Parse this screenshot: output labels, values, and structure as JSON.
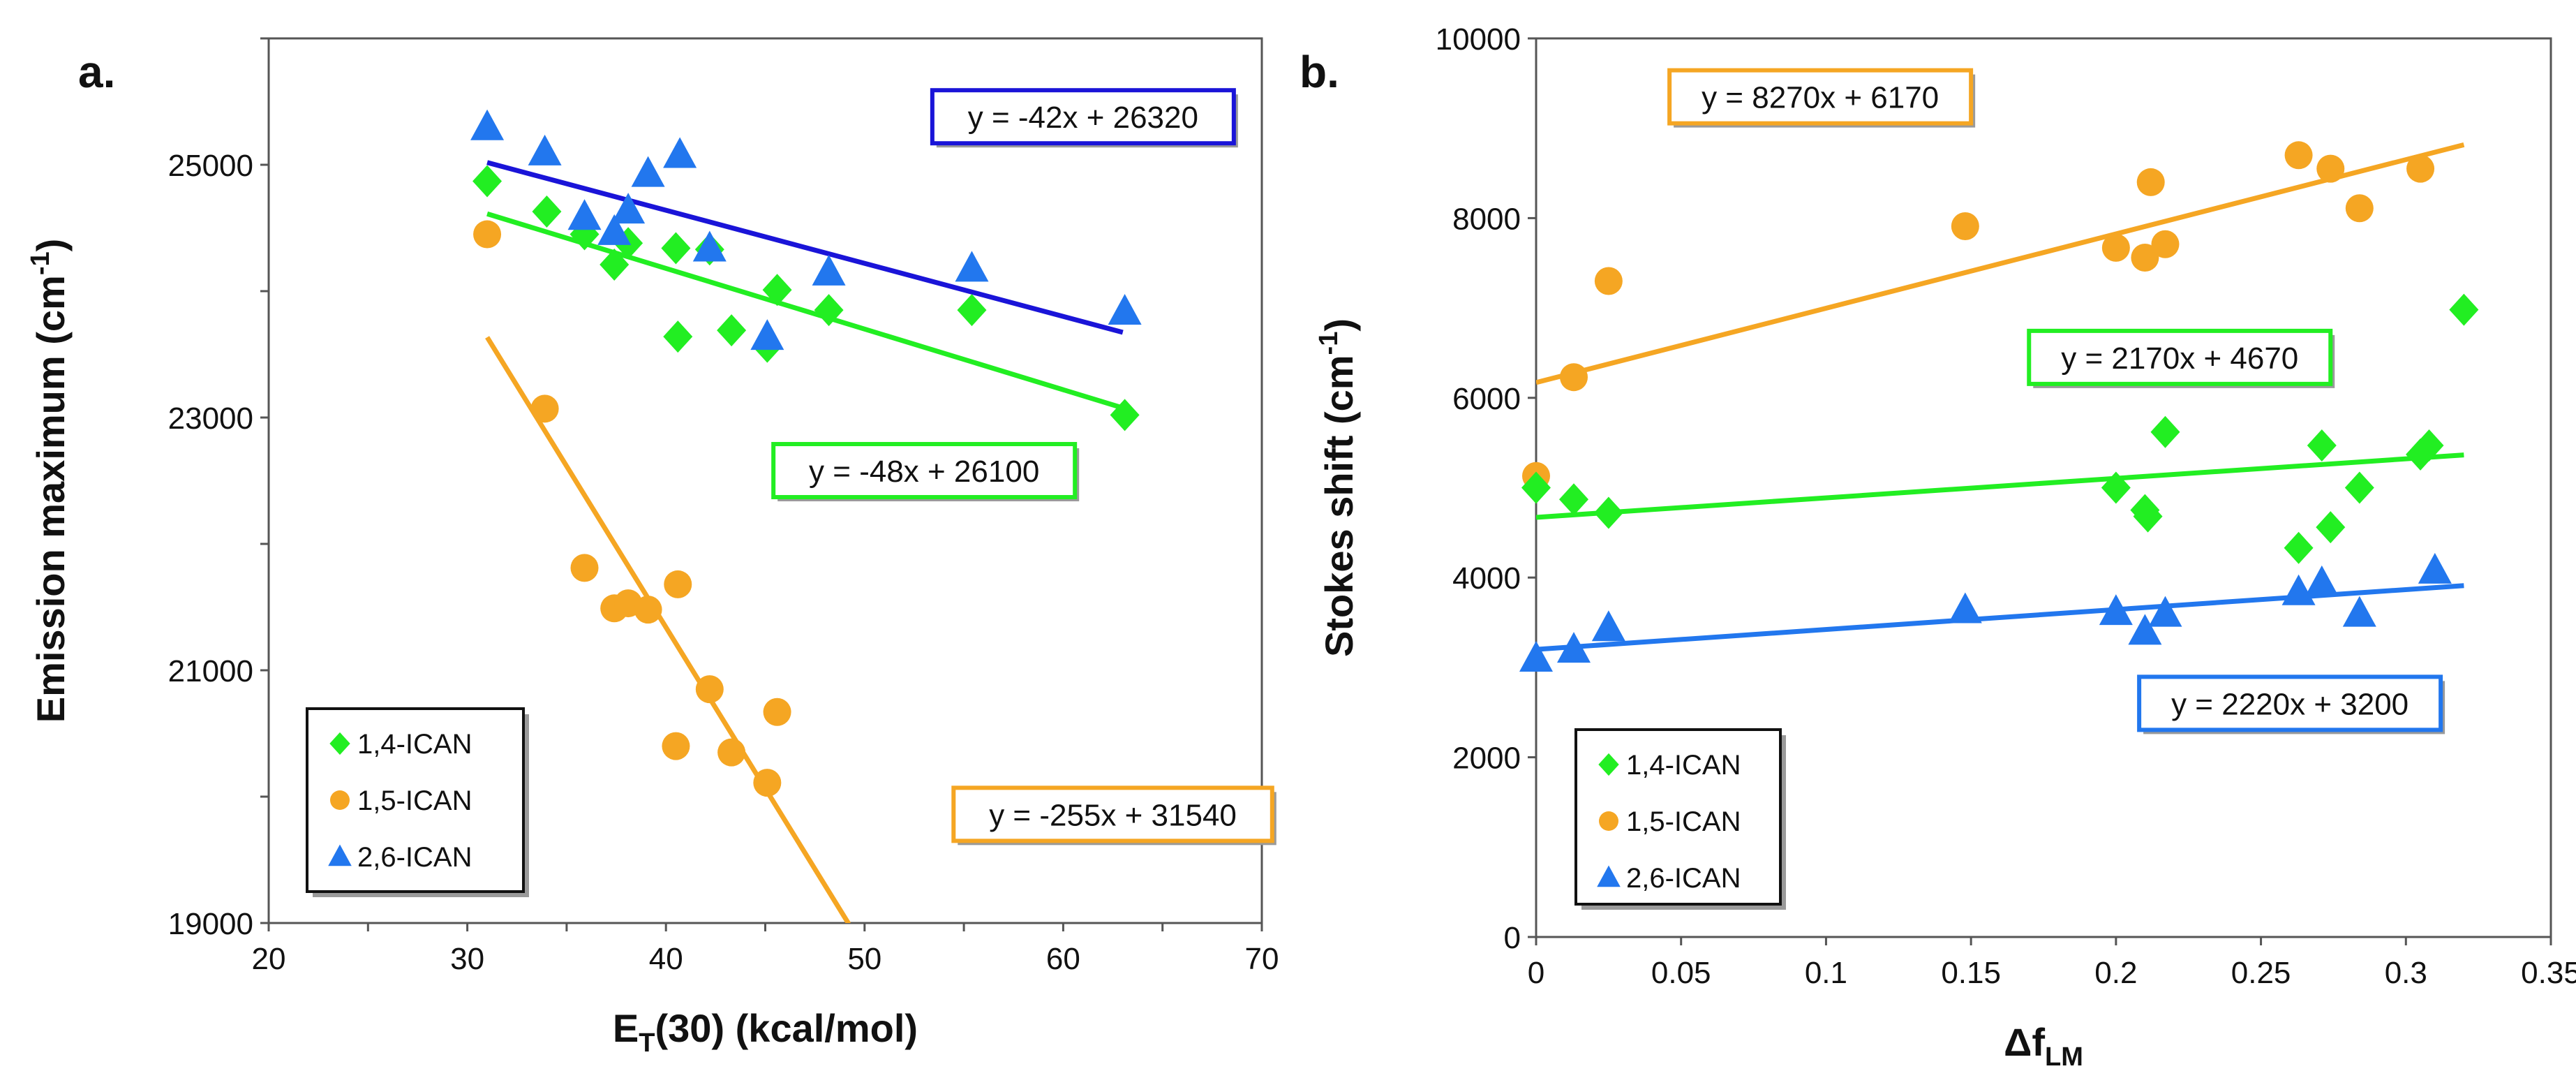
{
  "colors": {
    "green": "#22ee22",
    "orange": "#f5a623",
    "blue": "#2277ee",
    "darkblue": "#1a14d8"
  },
  "chart_data": [
    {
      "panel": "a.",
      "type": "scatter",
      "xlabel_main": "E",
      "xlabel_sub": "T",
      "xlabel_rest": "(30) (kcal/mol)",
      "ylabel_main": "Emission maximum (cm",
      "ylabel_sup": "-1",
      "ylabel_end": ")",
      "xlim": [
        20,
        70
      ],
      "ylim": [
        19000,
        26000
      ],
      "xticks": [
        20,
        30,
        40,
        50,
        60,
        70
      ],
      "yticks": [
        19000,
        21000,
        23000,
        25000
      ],
      "ytick_minor": [
        20000,
        22000,
        24000,
        26000
      ],
      "xtick_labels": [
        "20",
        "30",
        "40",
        "50",
        "60",
        "70"
      ],
      "ytick_labels": [
        "19000",
        "21000",
        "23000",
        "25000"
      ],
      "legend": [
        "1,4-ICAN",
        "1,5-ICAN",
        "2,6-ICAN"
      ],
      "series": [
        {
          "name": "1,4-ICAN",
          "marker": "diamond",
          "color": "green",
          "x": [
            31.0,
            34.0,
            35.9,
            37.4,
            38.1,
            40.5,
            40.6,
            42.2,
            43.3,
            45.1,
            45.6,
            48.2,
            55.4,
            63.1
          ],
          "y": [
            24870,
            24630,
            24450,
            24210,
            24380,
            24340,
            23640,
            24330,
            23690,
            23560,
            24010,
            23850,
            23850,
            23020
          ]
        },
        {
          "name": "1,5-ICAN",
          "marker": "circle",
          "color": "orange",
          "x": [
            31.0,
            33.9,
            35.9,
            37.4,
            38.1,
            39.1,
            40.6,
            40.5,
            42.2,
            43.3,
            45.1,
            45.6
          ],
          "y": [
            24450,
            23070,
            21810,
            21490,
            21530,
            21480,
            21680,
            20400,
            20850,
            20350,
            20110,
            20670
          ]
        },
        {
          "name": "2,6-ICAN",
          "marker": "triangle",
          "color": "blue",
          "x": [
            31.0,
            33.9,
            35.9,
            37.4,
            38.1,
            39.1,
            40.7,
            42.2,
            45.1,
            48.2,
            55.4,
            63.1
          ],
          "y": [
            25300,
            25100,
            24590,
            24470,
            24640,
            24930,
            25080,
            24340,
            23640,
            24150,
            24180,
            23840
          ]
        }
      ],
      "fits": [
        {
          "series": "2,6-ICAN",
          "color": "darkblue",
          "slope": -42,
          "intercept": 26320,
          "x_range": [
            31,
            63
          ],
          "label": "y = -42x + 26320",
          "label_pos": [
            61,
            25380
          ],
          "box_color": "darkblue"
        },
        {
          "series": "1,4-ICAN",
          "color": "green",
          "slope": -48,
          "intercept": 26100,
          "x_range": [
            31,
            63
          ],
          "label": "y = -48x + 26100",
          "label_pos": [
            53,
            22580
          ],
          "box_color": "green"
        },
        {
          "series": "1,5-ICAN",
          "color": "orange",
          "slope": -255,
          "intercept": 31540,
          "x_range": [
            31,
            49.2
          ],
          "label": "y = -255x + 31540",
          "label_pos": [
            62.5,
            19860
          ],
          "box_color": "orange"
        }
      ],
      "legend_position": "bottom-left"
    },
    {
      "panel": "b.",
      "type": "scatter",
      "xlabel_main": "Δf",
      "xlabel_sub": "LM",
      "ylabel_main": "Stokes shift (cm",
      "ylabel_sup": "-1",
      "ylabel_end": ")",
      "xlim": [
        0,
        0.35
      ],
      "ylim": [
        0,
        10000
      ],
      "xticks": [
        0,
        0.05,
        0.1,
        0.15,
        0.2,
        0.25,
        0.3,
        0.35
      ],
      "yticks": [
        0,
        2000,
        4000,
        6000,
        8000,
        10000
      ],
      "xtick_labels": [
        "0",
        "0.05",
        "0.1",
        "0.15",
        "0.2",
        "0.25",
        "0.3",
        "0.35"
      ],
      "ytick_labels": [
        "0",
        "2000",
        "4000",
        "6000",
        "8000",
        "10000"
      ],
      "legend": [
        "1,4-ICAN",
        "1,5-ICAN",
        "2,6-ICAN"
      ],
      "series": [
        {
          "name": "1,4-ICAN",
          "marker": "diamond",
          "color": "green",
          "x": [
            0.0,
            0.013,
            0.025,
            0.2,
            0.21,
            0.211,
            0.217,
            0.263,
            0.271,
            0.274,
            0.284,
            0.305,
            0.308,
            0.32
          ],
          "y": [
            5000,
            4870,
            4720,
            5000,
            4750,
            4680,
            5620,
            4330,
            5470,
            4560,
            5000,
            5370,
            5470,
            6980
          ]
        },
        {
          "name": "1,5-ICAN",
          "marker": "circle",
          "color": "orange",
          "x": [
            0.0,
            0.013,
            0.025,
            0.148,
            0.2,
            0.21,
            0.212,
            0.217,
            0.263,
            0.274,
            0.284,
            0.305
          ],
          "y": [
            5130,
            6230,
            7300,
            7910,
            7670,
            7560,
            8400,
            7710,
            8700,
            8550,
            8110,
            8550
          ]
        },
        {
          "name": "2,6-ICAN",
          "marker": "triangle",
          "color": "blue",
          "x": [
            0.0,
            0.013,
            0.025,
            0.148,
            0.2,
            0.21,
            0.217,
            0.263,
            0.271,
            0.284,
            0.31
          ],
          "y": [
            3100,
            3200,
            3440,
            3640,
            3620,
            3400,
            3600,
            3840,
            3940,
            3600,
            4080
          ]
        }
      ],
      "fits": [
        {
          "series": "1,5-ICAN",
          "color": "orange",
          "slope": 8270,
          "intercept": 6170,
          "x_range": [
            0,
            0.32
          ],
          "label": "y = 8270x + 6170",
          "label_pos": [
            0.098,
            9350
          ],
          "box_color": "orange"
        },
        {
          "series": "1,4-ICAN",
          "color": "green",
          "slope": 2170,
          "intercept": 4670,
          "x_range": [
            0,
            0.32
          ],
          "label": "y = 2170x + 4670",
          "label_pos": [
            0.222,
            6450
          ],
          "box_color": "green"
        },
        {
          "series": "2,6-ICAN",
          "color": "blue",
          "slope": 2220,
          "intercept": 3200,
          "x_range": [
            0,
            0.32
          ],
          "label": "y = 2220x + 3200",
          "label_pos": [
            0.26,
            2600
          ],
          "box_color": "blue"
        }
      ],
      "legend_position": "bottom-left"
    }
  ]
}
